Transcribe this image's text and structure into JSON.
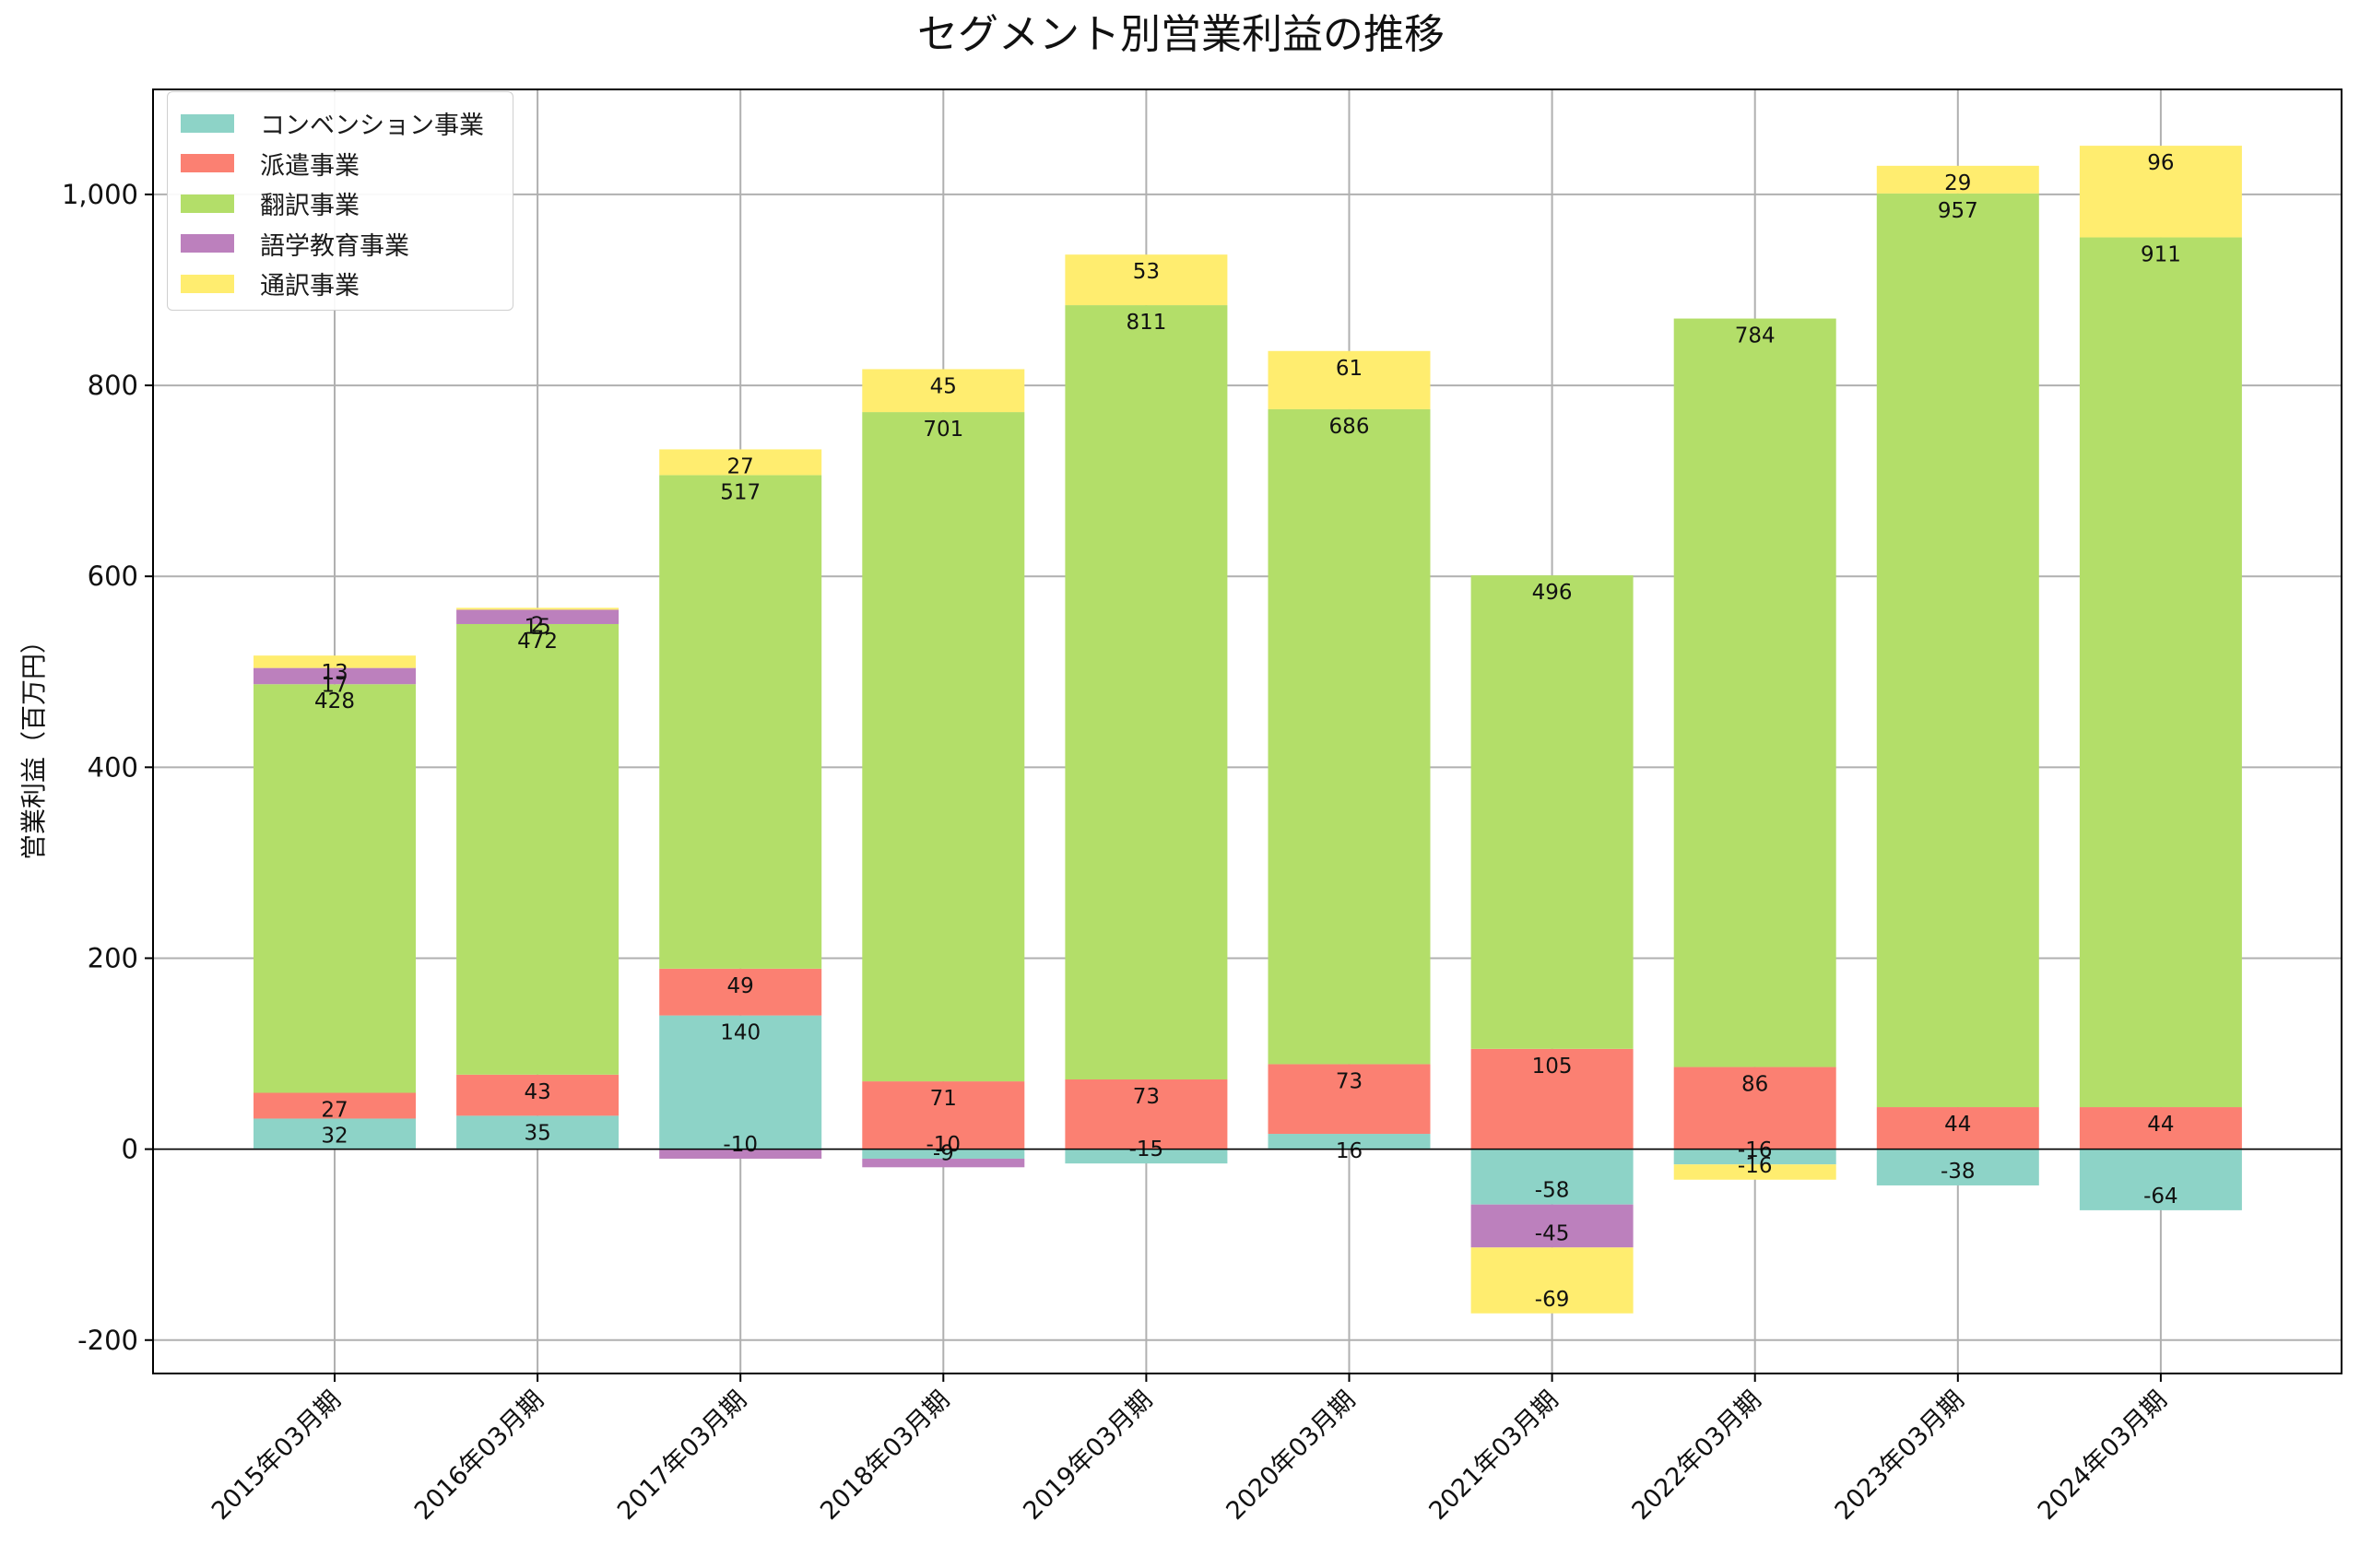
{
  "chart_data": {
    "type": "bar",
    "stacked": true,
    "title": "セグメント別営業利益の推移",
    "ylabel": "営業利益（百万円）",
    "xlabel": "",
    "ylim": [
      -235,
      1110
    ],
    "yticks": [
      -200,
      0,
      200,
      400,
      600,
      800,
      1000
    ],
    "ytick_labels": [
      "-200",
      "0",
      "200",
      "400",
      "600",
      "800",
      "1,000"
    ],
    "grid": true,
    "legend_position": "upper-left",
    "categories": [
      "2015年03月期",
      "2016年03月期",
      "2017年03月期",
      "2018年03月期",
      "2019年03月期",
      "2020年03月期",
      "2021年03月期",
      "2022年03月期",
      "2023年03月期",
      "2024年03月期"
    ],
    "series": [
      {
        "name": "コンベンション事業",
        "color": "#8dd3c7",
        "values": [
          32,
          35,
          140,
          -10,
          -15,
          16,
          -58,
          -16,
          -38,
          -64
        ]
      },
      {
        "name": "派遣事業",
        "color": "#fb8072",
        "values": [
          27,
          43,
          49,
          71,
          73,
          73,
          105,
          86,
          44,
          44
        ]
      },
      {
        "name": "翻訳事業",
        "color": "#b3de69",
        "values": [
          428,
          472,
          517,
          701,
          811,
          686,
          496,
          784,
          957,
          911
        ]
      },
      {
        "name": "語学教育事業",
        "color": "#bc80bd",
        "values": [
          17,
          15,
          -10,
          -9,
          0,
          0,
          -45,
          0,
          0,
          0
        ]
      },
      {
        "name": "通訳事業",
        "color": "#ffed6f",
        "values": [
          13,
          2,
          27,
          45,
          53,
          61,
          -69,
          -16,
          29,
          96
        ]
      }
    ]
  }
}
